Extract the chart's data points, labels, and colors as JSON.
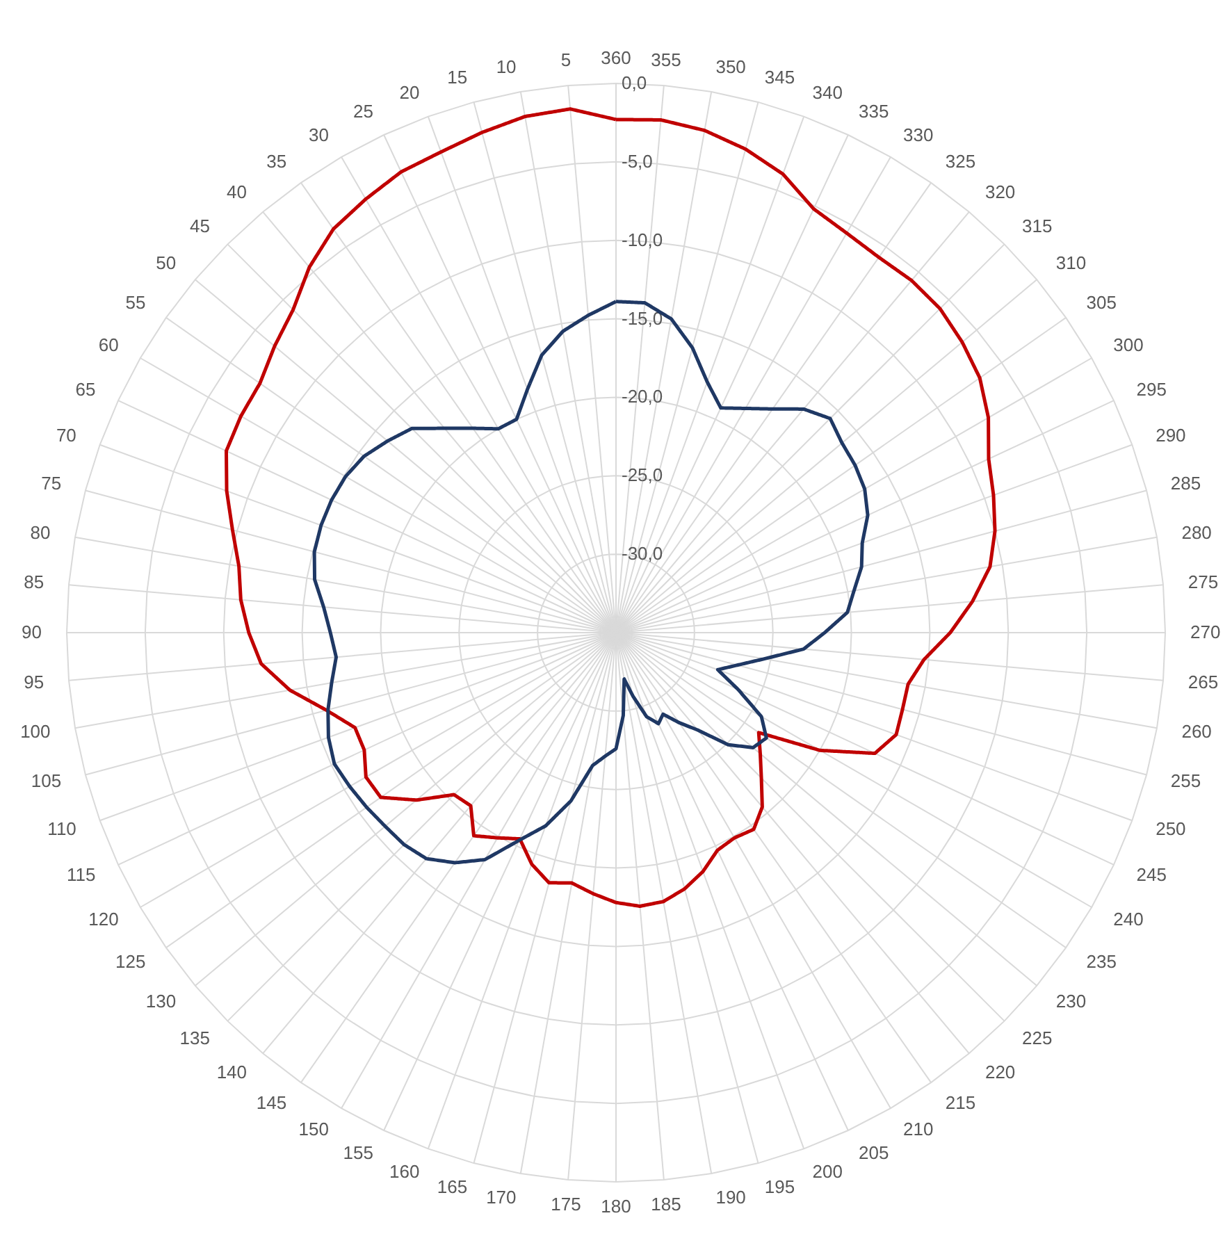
{
  "chart_data": {
    "type": "radar",
    "categories": [
      "360",
      "355",
      "350",
      "345",
      "340",
      "335",
      "330",
      "325",
      "320",
      "315",
      "310",
      "305",
      "300",
      "295",
      "290",
      "285",
      "280",
      "275",
      "270",
      "265",
      "260",
      "255",
      "250",
      "245",
      "240",
      "235",
      "230",
      "225",
      "220",
      "215",
      "210",
      "205",
      "200",
      "195",
      "190",
      "185",
      "180",
      "175",
      "170",
      "165",
      "160",
      "155",
      "150",
      "145",
      "140",
      "135",
      "130",
      "125",
      "120",
      "115",
      "110",
      "105",
      "100",
      "95",
      "90",
      "85",
      "80",
      "75",
      "70",
      "65",
      "60",
      "55",
      "50",
      "45",
      "40",
      "35",
      "30",
      "25",
      "20",
      "15",
      "10",
      "5"
    ],
    "series": [
      {
        "color": "#c00000",
        "values": [
          -2.3,
          -2.2,
          -2.5,
          -3.1,
          -3.9,
          -5.2,
          -5.6,
          -5.8,
          -5.7,
          -5.8,
          -6.2,
          -6.7,
          -7.6,
          -8.8,
          -9.4,
          -10.0,
          -10.8,
          -12.2,
          -13.7,
          -15.3,
          -16.1,
          -16.1,
          -16.0,
          -16.8,
          -20.0,
          -23.9,
          -23.0,
          -21.9,
          -20.5,
          -19.7,
          -19.9,
          -19.7,
          -18.8,
          -18.1,
          -17.6,
          -17.5,
          -17.8,
          -18.3,
          -18.8,
          -18.5,
          -19.3,
          -20.5,
          -19.9,
          -19.2,
          -20.6,
          -20.4,
          -18.4,
          -16.7,
          -16.6,
          -17.3,
          -17.3,
          -15.9,
          -13.9,
          -12.3,
          -11.6,
          -11.0,
          -10.6,
          -9.7,
          -8.6,
          -7.6,
          -7.4,
          -7.3,
          -6.6,
          -5.9,
          -4.6,
          -3.6,
          -3.1,
          -2.6,
          -2.4,
          -2.0,
          -1.6,
          -1.5
        ]
      },
      {
        "color": "#1f3864",
        "values": [
          -13.9,
          -13.9,
          -14.7,
          -16.2,
          -18.0,
          -19.2,
          -18.5,
          -17.6,
          -16.4,
          -15.7,
          -16.2,
          -16.4,
          -16.7,
          -17.3,
          -18.3,
          -18.8,
          -19.6,
          -20.2,
          -21.7,
          -23.0,
          -25.4,
          -27.0,
          -28.1,
          -26.4,
          -24.3,
          -23.3,
          -23.6,
          -24.9,
          -26.9,
          -28.0,
          -29.0,
          -28.6,
          -29.3,
          -30.8,
          -32.0,
          -29.7,
          -27.6,
          -27.1,
          -26.4,
          -23.9,
          -21.9,
          -20.4,
          -18.3,
          -17.1,
          -16.2,
          -15.9,
          -15.8,
          -15.6,
          -15.4,
          -15.2,
          -15.5,
          -16.0,
          -16.6,
          -17.1,
          -16.8,
          -16.3,
          -15.5,
          -15.1,
          -15.0,
          -15.0,
          -15.1,
          -15.4,
          -16.0,
          -16.6,
          -18.0,
          -19.1,
          -20.0,
          -20.0,
          -18.5,
          -16.7,
          -15.5,
          -14.7
        ]
      }
    ],
    "ylim": [
      -35,
      0
    ],
    "yticks": [
      {
        "value": 0,
        "label": "0,0"
      },
      {
        "value": -5,
        "label": "-5,0"
      },
      {
        "value": -10,
        "label": "-10,0"
      },
      {
        "value": -15,
        "label": "-15,0"
      },
      {
        "value": -20,
        "label": "-20,0"
      },
      {
        "value": -25,
        "label": "-25,0"
      },
      {
        "value": -30,
        "label": "-30,0"
      }
    ],
    "grid": true,
    "marker": "none",
    "line_style": "solid"
  }
}
